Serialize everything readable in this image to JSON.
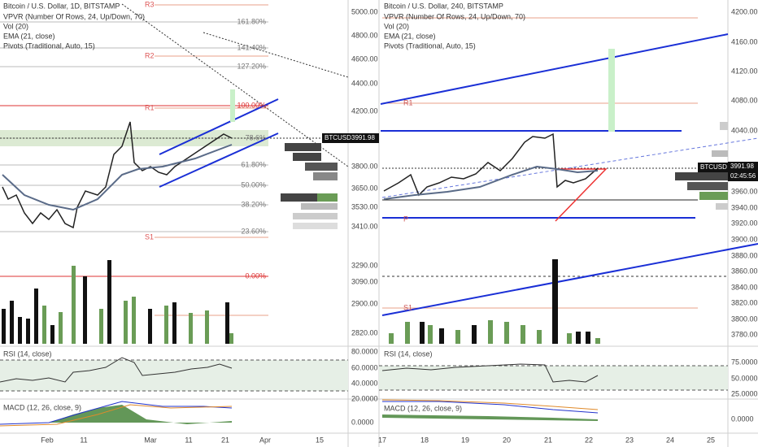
{
  "left": {
    "header": [
      "Bitcoin / U.S. Dollar, 1D, BITSTAMP",
      "VPVR (Number Of Rows, 24, Up/Down, 70)",
      "Vol (20)",
      "EMA (21, close)",
      "Pivots (Traditional, Auto, 15)"
    ],
    "price_axis": [
      "5000.00",
      "4800.00",
      "4600.00",
      "4400.00",
      "4200.00",
      "3800.00",
      "3650.00",
      "3530.00",
      "3410.00",
      "3290.00",
      "3090.00",
      "2900.00",
      "2820.00"
    ],
    "fib_levels": [
      "161.80%",
      "141.40%",
      "127.20%",
      "100.00%",
      "78.6%",
      "61.80%",
      "50.00%",
      "38.20%",
      "23.60%",
      "0.00%"
    ],
    "pivots": [
      "R3",
      "R2",
      "R1",
      "S1"
    ],
    "price_tag": {
      "symbol": "BTCUSD",
      "price": "3991.98"
    },
    "rsi": {
      "label": "RSI (14, close)",
      "axis": [
        "80.0000",
        "60.0000",
        "40.0000",
        "20.0000"
      ]
    },
    "macd": {
      "label": "MACD (12, 26, close, 9)",
      "axis": [
        "0.0000"
      ]
    },
    "dates": [
      "Feb",
      "11",
      "Mar",
      "11",
      "21",
      "Apr",
      "15"
    ]
  },
  "right": {
    "header": [
      "Bitcoin / U.S. Dollar, 240, BITSTAMP",
      "VPVR (Number Of Rows, 24, Up/Down, 70)",
      "Vol (20)",
      "EMA (21, close)",
      "Pivots (Traditional, Auto, 15)"
    ],
    "price_axis": [
      "4200.00",
      "4160.00",
      "4120.00",
      "4080.00",
      "4040.00",
      "3960.00",
      "3940.00",
      "3920.00",
      "3900.00",
      "3880.00",
      "3860.00",
      "3840.00",
      "3820.00",
      "3800.00",
      "3780.00"
    ],
    "pivots": [
      "R1",
      "S1",
      "P"
    ],
    "price_tag": {
      "symbol": "BTCUSD",
      "price": "3991.98",
      "countdown": "02:45:56"
    },
    "rsi": {
      "label": "RSI (14, close)",
      "axis": [
        "75.0000",
        "50.0000",
        "25.0000"
      ]
    },
    "macd": {
      "label": "MACD (12, 26, close, 9)",
      "axis": [
        "0.0000"
      ]
    },
    "dates": [
      "17",
      "18",
      "19",
      "20",
      "21",
      "22",
      "23",
      "24",
      "25"
    ]
  }
}
